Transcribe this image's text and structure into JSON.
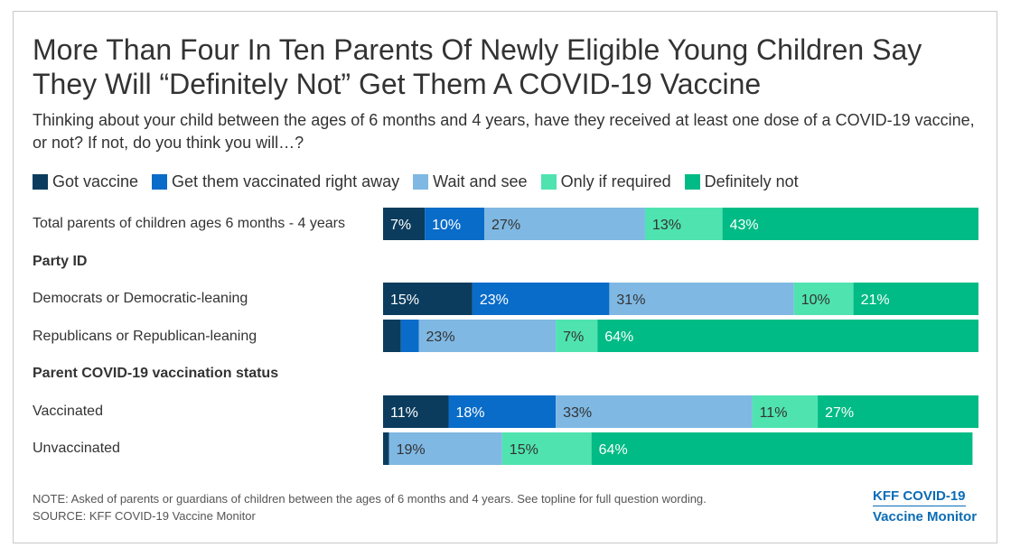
{
  "title": "More Than Four In Ten Parents Of Newly Eligible Young Children Say They Will “Definitely Not” Get Them A COVID-19 Vaccine",
  "subtitle": "Thinking about your child between the ages of 6 months and 4 years, have they received at least one dose of a COVID-19 vaccine, or not? If not, do you think you will…?",
  "note": "NOTE: Asked of parents or guardians of children between the ages of 6 months and 4 years. See topline for full question wording.",
  "source": "SOURCE: KFF COVID-19 Vaccine Monitor",
  "brand": {
    "line1": "KFF COVID-19",
    "line2": "Vaccine Monitor"
  },
  "legend": [
    {
      "label": "Got vaccine",
      "color": "#0b3c5d"
    },
    {
      "label": "Get them vaccinated right away",
      "color": "#0a6cc9"
    },
    {
      "label": "Wait and see",
      "color": "#7fb8e3"
    },
    {
      "label": "Only if required",
      "color": "#4fe3b0"
    },
    {
      "label": "Definitely not",
      "color": "#00bb85"
    }
  ],
  "groups": [
    "Party ID",
    "Parent COVID-19 vaccination status"
  ],
  "chart_data": {
    "type": "bar",
    "orientation": "horizontal",
    "stacked": true,
    "xlim": [
      0,
      100
    ],
    "categories": [
      "Total parents of children ages 6 months - 4 years",
      "Democrats or Democratic-leaning",
      "Republicans or Republican-leaning",
      "Vaccinated",
      "Unvaccinated"
    ],
    "series": [
      {
        "name": "Got vaccine",
        "color": "#0b3c5d",
        "values": [
          7,
          15,
          3,
          11,
          1
        ],
        "labels": [
          "7%",
          "15%",
          "",
          "11%",
          ""
        ]
      },
      {
        "name": "Get them vaccinated right away",
        "color": "#0a6cc9",
        "values": [
          10,
          23,
          3,
          18,
          0
        ],
        "labels": [
          "10%",
          "23%",
          "",
          "18%",
          ""
        ]
      },
      {
        "name": "Wait and see",
        "color": "#7fb8e3",
        "values": [
          27,
          31,
          23,
          33,
          19
        ],
        "labels": [
          "27%",
          "31%",
          "23%",
          "33%",
          "19%"
        ]
      },
      {
        "name": "Only if required",
        "color": "#4fe3b0",
        "values": [
          13,
          10,
          7,
          11,
          15
        ],
        "labels": [
          "13%",
          "10%",
          "7%",
          "11%",
          "15%"
        ]
      },
      {
        "name": "Definitely not",
        "color": "#00bb85",
        "values": [
          43,
          21,
          64,
          27,
          64
        ],
        "labels": [
          "43%",
          "21%",
          "64%",
          "27%",
          "64%"
        ]
      }
    ]
  }
}
